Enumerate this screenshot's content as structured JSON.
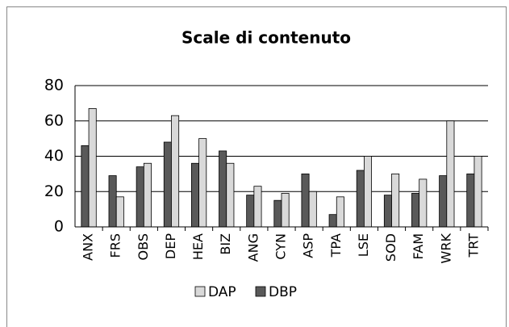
{
  "chart_data": {
    "type": "bar",
    "title": "Scale di contenuto",
    "categories": [
      "ANX",
      "FRS",
      "OBS",
      "DEP",
      "HEA",
      "BIZ",
      "ANG",
      "CYN",
      "ASP",
      "TPA",
      "LSE",
      "SOD",
      "FAM",
      "WRK",
      "TRT"
    ],
    "series": [
      {
        "name": "DBP",
        "color": "#595959",
        "values": [
          46,
          29,
          34,
          48,
          36,
          43,
          18,
          15,
          30,
          7,
          32,
          18,
          19,
          29,
          30
        ]
      },
      {
        "name": "DAP",
        "color": "#d9d9d9",
        "values": [
          67,
          17,
          36,
          63,
          50,
          36,
          23,
          19,
          20,
          17,
          40,
          30,
          27,
          60,
          40
        ]
      }
    ],
    "ylim": [
      0,
      80
    ],
    "yticks": [
      0,
      20,
      40,
      60,
      80
    ],
    "grid": true,
    "legend": "bottom"
  }
}
